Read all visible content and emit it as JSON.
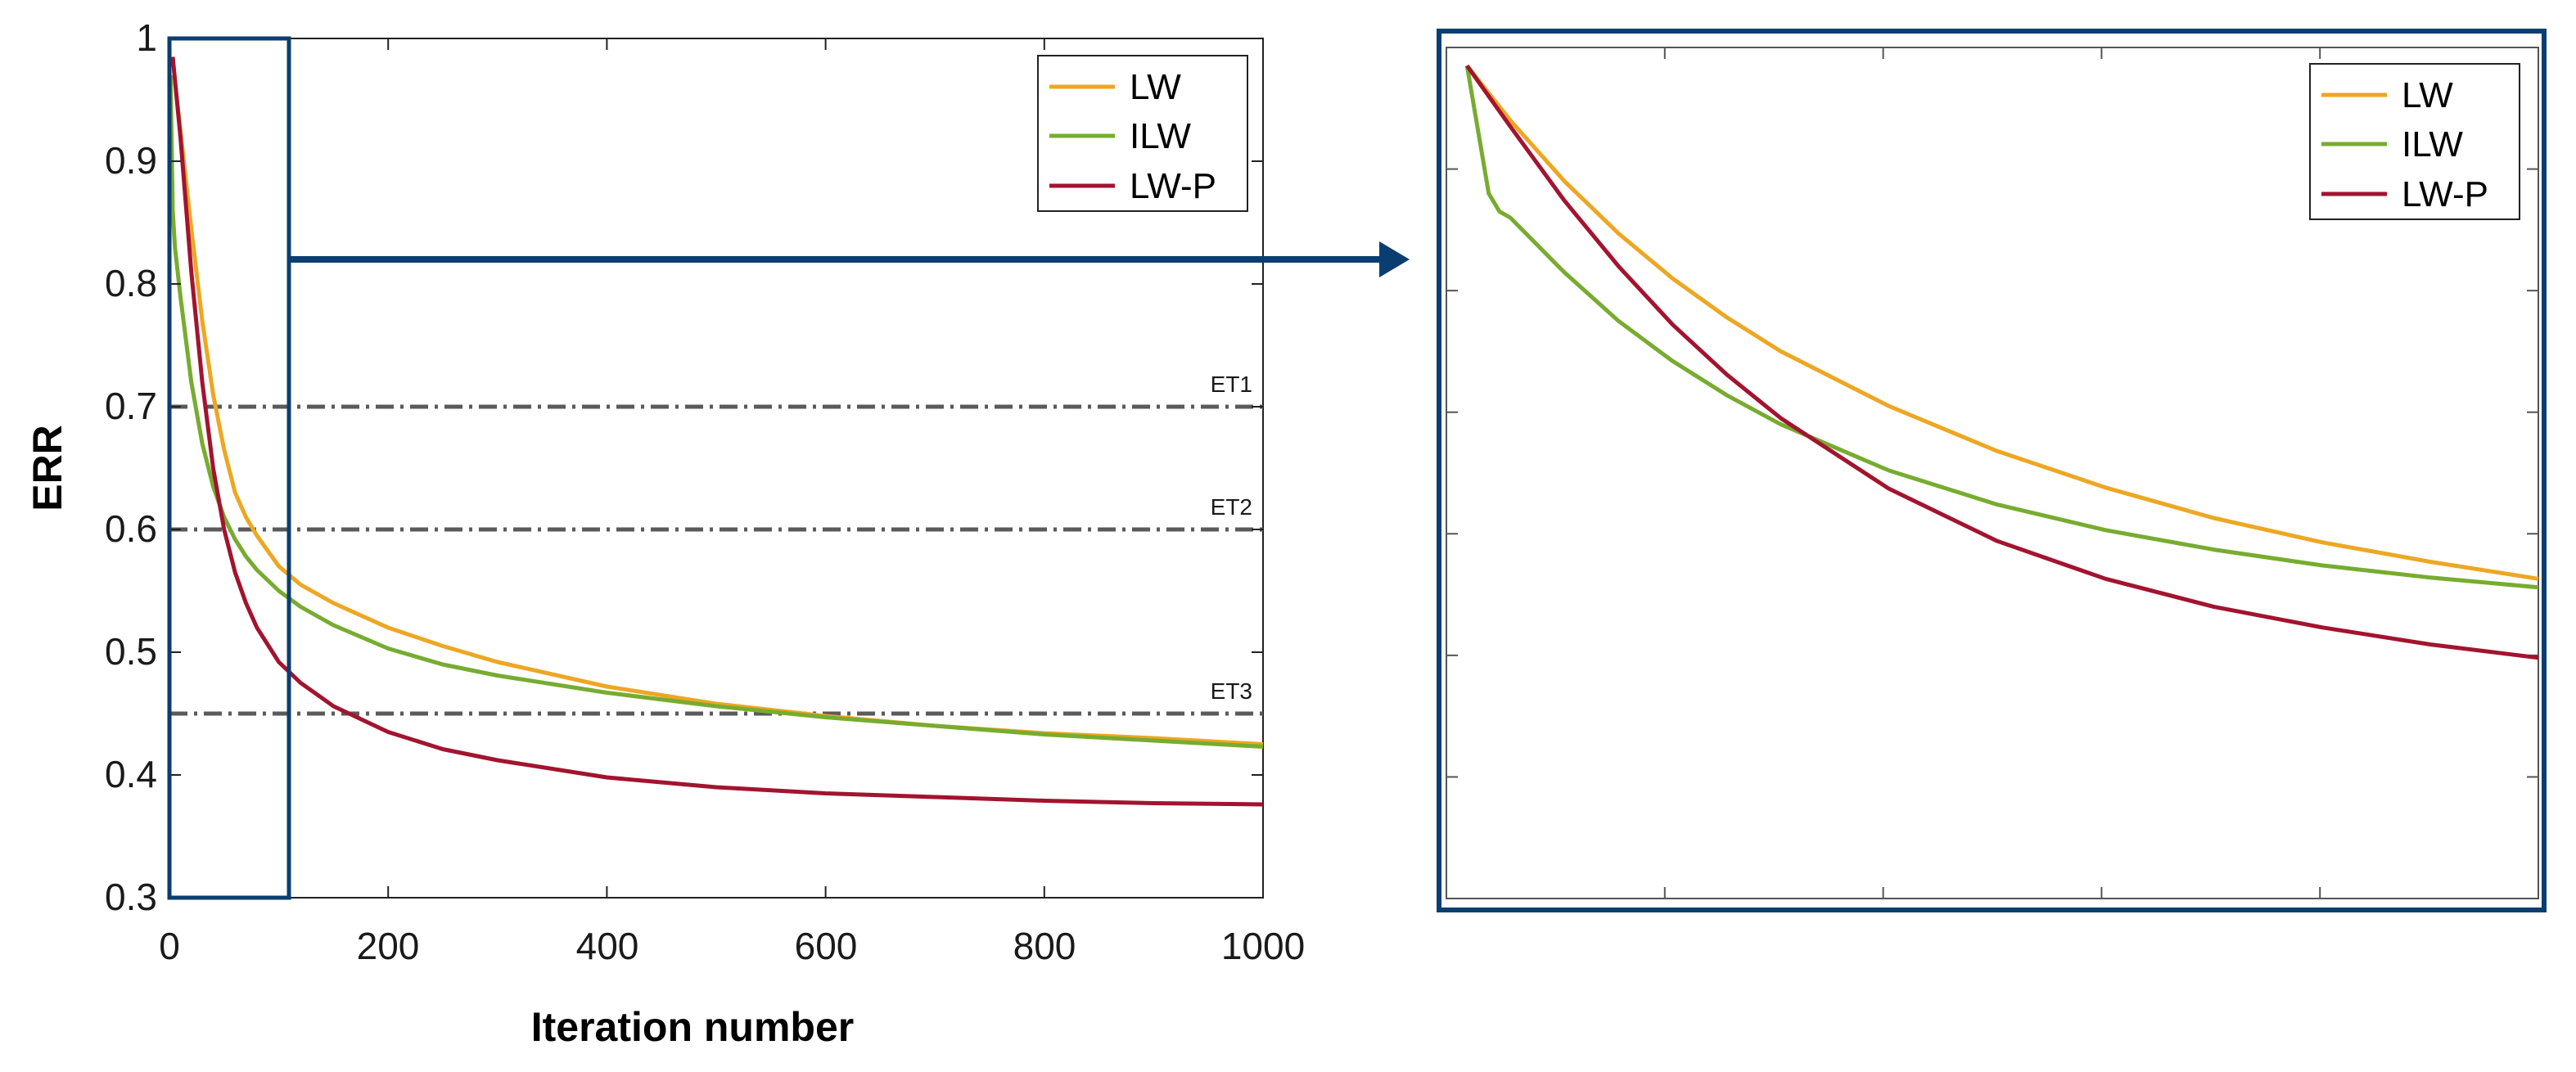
{
  "chart_data": [
    {
      "type": "line",
      "title": "",
      "xlabel": "Iteration number",
      "ylabel": "ERR",
      "xlim": [
        0,
        1000
      ],
      "ylim": [
        0.3,
        1
      ],
      "x_ticks": [
        "0",
        "200",
        "400",
        "600",
        "800",
        "1000"
      ],
      "y_ticks": [
        "0.3",
        "0.4",
        "0.5",
        "0.6",
        "0.7",
        "0.8",
        "0.9",
        "1"
      ],
      "legend_position": "top-right",
      "series": [
        {
          "name": "LW",
          "color": "#EDA723",
          "x": [
            5,
            10,
            20,
            30,
            40,
            50,
            60,
            70,
            80,
            100,
            120,
            150,
            200,
            250,
            300,
            400,
            500,
            600,
            700,
            800,
            900,
            1000
          ],
          "y": [
            0.965,
            0.925,
            0.845,
            0.77,
            0.71,
            0.665,
            0.63,
            0.61,
            0.595,
            0.57,
            0.555,
            0.54,
            0.52,
            0.505,
            0.492,
            0.472,
            0.458,
            0.448,
            0.44,
            0.434,
            0.43,
            0.425
          ]
        },
        {
          "name": "ILW",
          "color": "#77AC30",
          "x": [
            1,
            3,
            5,
            10,
            20,
            30,
            40,
            50,
            60,
            70,
            80,
            100,
            120,
            150,
            200,
            250,
            300,
            400,
            500,
            600,
            700,
            800,
            900,
            1000
          ],
          "y": [
            0.97,
            0.86,
            0.83,
            0.79,
            0.72,
            0.67,
            0.635,
            0.61,
            0.592,
            0.578,
            0.567,
            0.55,
            0.537,
            0.522,
            0.503,
            0.49,
            0.481,
            0.467,
            0.456,
            0.447,
            0.44,
            0.433,
            0.428,
            0.423
          ]
        },
        {
          "name": "LW-P",
          "color": "#A2142F",
          "x": [
            3,
            10,
            20,
            30,
            40,
            50,
            60,
            70,
            80,
            100,
            120,
            150,
            200,
            250,
            300,
            400,
            500,
            600,
            700,
            800,
            900,
            1000
          ],
          "y": [
            0.985,
            0.92,
            0.81,
            0.72,
            0.65,
            0.6,
            0.565,
            0.54,
            0.52,
            0.492,
            0.475,
            0.456,
            0.435,
            0.421,
            0.412,
            0.398,
            0.39,
            0.385,
            0.382,
            0.379,
            0.377,
            0.376
          ]
        }
      ],
      "reference_lines": [
        {
          "label": "ET1",
          "y": 0.7
        },
        {
          "label": "ET2",
          "y": 0.6
        },
        {
          "label": "ET3",
          "y": 0.45
        }
      ],
      "zoom_region": {
        "x": [
          0,
          110
        ],
        "y": [
          0.3,
          1
        ]
      }
    },
    {
      "type": "line",
      "title": "",
      "xlabel": "",
      "ylabel": "",
      "note": "magnified view of the highlighted region",
      "xlim": [
        0,
        100
      ],
      "ylim": [
        0.3,
        1
      ],
      "legend_position": "top-right",
      "series": [
        {
          "name": "LW",
          "color": "#EDA723",
          "x": [
            1,
            5,
            10,
            15,
            20,
            25,
            30,
            40,
            50,
            60,
            70,
            80,
            90,
            100
          ],
          "y": [
            0.985,
            0.94,
            0.89,
            0.847,
            0.81,
            0.778,
            0.75,
            0.705,
            0.668,
            0.638,
            0.613,
            0.593,
            0.577,
            0.563
          ]
        },
        {
          "name": "ILW",
          "color": "#77AC30",
          "x": [
            1,
            3,
            4,
            5,
            10,
            15,
            20,
            25,
            30,
            40,
            50,
            60,
            70,
            80,
            90,
            100
          ],
          "y": [
            0.985,
            0.88,
            0.865,
            0.86,
            0.815,
            0.775,
            0.742,
            0.714,
            0.69,
            0.652,
            0.624,
            0.603,
            0.587,
            0.574,
            0.564,
            0.556
          ]
        },
        {
          "name": "LW-P",
          "color": "#A2142F",
          "x": [
            1,
            5,
            10,
            15,
            20,
            25,
            30,
            40,
            50,
            60,
            70,
            80,
            90,
            100
          ],
          "y": [
            0.985,
            0.935,
            0.874,
            0.82,
            0.772,
            0.731,
            0.695,
            0.637,
            0.594,
            0.563,
            0.54,
            0.523,
            0.509,
            0.498
          ]
        }
      ]
    }
  ]
}
